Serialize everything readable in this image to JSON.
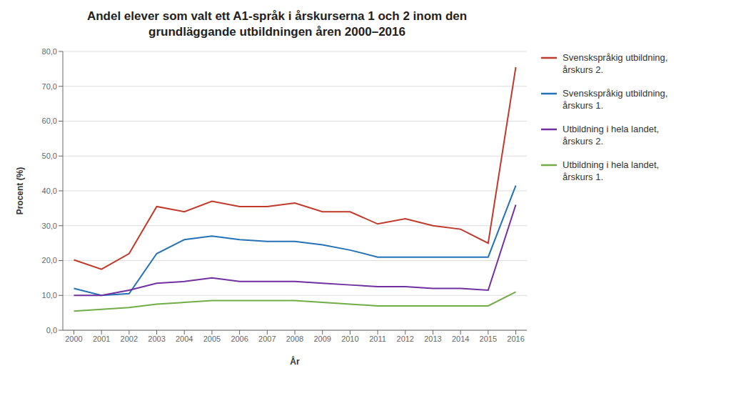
{
  "chart_data": {
    "type": "line",
    "title": "Andel elever som valt ett A1-språk i årskurserna 1 och 2 inom den\ngrundläggande utbildningen åren 2000–2016",
    "xlabel": "År",
    "ylabel": "Procent (%)",
    "x": [
      2000,
      2001,
      2002,
      2003,
      2004,
      2005,
      2006,
      2007,
      2008,
      2009,
      2010,
      2011,
      2012,
      2013,
      2014,
      2015,
      2016
    ],
    "series": [
      {
        "name": "Svenskspråkig utbildning,\nårskurs 2.",
        "color": "#c0392b",
        "values": [
          20.2,
          17.5,
          22.0,
          35.5,
          34.0,
          37.0,
          35.5,
          35.5,
          36.5,
          34.0,
          34.0,
          30.5,
          32.0,
          30.0,
          29.0,
          25.0,
          75.5
        ]
      },
      {
        "name": "Svenskspråkig utbildning,\nårskurs 1.",
        "color": "#2472b5",
        "values": [
          12.0,
          10.0,
          10.5,
          22.0,
          26.0,
          27.0,
          26.0,
          25.5,
          25.5,
          24.5,
          23.0,
          21.0,
          21.0,
          21.0,
          21.0,
          21.0,
          41.5
        ]
      },
      {
        "name": "Utbildning i hela landet,\nårskurs 2.",
        "color": "#7030a0",
        "values": [
          10.0,
          10.0,
          11.5,
          13.5,
          14.0,
          15.0,
          14.0,
          14.0,
          14.0,
          13.5,
          13.0,
          12.5,
          12.5,
          12.0,
          12.0,
          11.5,
          36.0
        ]
      },
      {
        "name": "Utbildning i hela landet,\nårskurs 1.",
        "color": "#70ad47",
        "values": [
          5.5,
          6.0,
          6.5,
          7.5,
          8.0,
          8.5,
          8.5,
          8.5,
          8.5,
          8.0,
          7.5,
          7.0,
          7.0,
          7.0,
          7.0,
          7.0,
          11.0
        ]
      }
    ],
    "xlim": [
      1999.6,
      2016.4
    ],
    "xticks": [
      2000,
      2001,
      2002,
      2003,
      2004,
      2005,
      2006,
      2007,
      2008,
      2009,
      2010,
      2011,
      2012,
      2013,
      2014,
      2015,
      2016
    ],
    "ylim": [
      0,
      80
    ],
    "yticks": [
      {
        "value": 0,
        "label": "0,0"
      },
      {
        "value": 10,
        "label": "10,0"
      },
      {
        "value": 20,
        "label": "20,0"
      },
      {
        "value": 30,
        "label": "30,0"
      },
      {
        "value": 40,
        "label": "40,0"
      },
      {
        "value": 50,
        "label": "50,0"
      },
      {
        "value": 60,
        "label": "60,0"
      },
      {
        "value": 70,
        "label": "70,0"
      },
      {
        "value": 80,
        "label": "80,0"
      }
    ],
    "grid": true,
    "legend": "right"
  }
}
